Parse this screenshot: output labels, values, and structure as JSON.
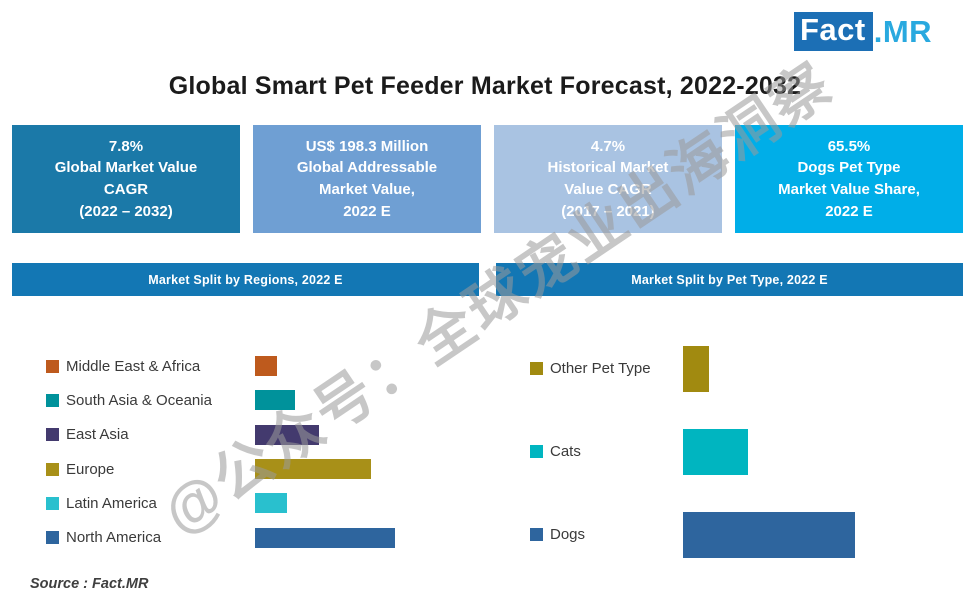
{
  "logo": {
    "fact": "Fact",
    "mr": ".MR",
    "fact_bg": "#1c6fb5",
    "mr_color": "#29a9df"
  },
  "title": "Global Smart Pet Feeder Market Forecast, 2022-2032",
  "stat_boxes": [
    {
      "color": "#1b79a8",
      "lines": [
        "7.8%",
        "Global Market Value",
        "CAGR",
        "(2022 – 2032)"
      ]
    },
    {
      "color": "#6f9fd3",
      "lines": [
        "US$ 198.3 Million",
        "Global Addressable",
        "Market Value,",
        "2022 E"
      ]
    },
    {
      "color": "#a9c3e2",
      "lines": [
        "4.7%",
        "Historical Market",
        "Value CAGR",
        "(2017 – 2021)"
      ]
    },
    {
      "color": "#00aee8",
      "lines": [
        "65.5%",
        "Dogs Pet Type",
        "Market Value Share,",
        "2022 E"
      ]
    }
  ],
  "section_headers": [
    {
      "label": "Market Split by Regions, 2022 E",
      "bg": "#1377b4"
    },
    {
      "label": "Market Split by Pet Type, 2022 E",
      "bg": "#1377b4"
    }
  ],
  "chart_data": [
    {
      "type": "bar",
      "orientation": "horizontal",
      "title": "Market Split by Regions, 2022 E",
      "categories": [
        "Middle East & Africa",
        "South Asia & Oceania",
        "East Asia",
        "Europe",
        "Latin America",
        "North America"
      ],
      "values": [
        5.5,
        10,
        16,
        29,
        8,
        35
      ],
      "value_labels_shown": false,
      "values_note": "percent share estimated from bar lengths",
      "colors": [
        "#be5a1d",
        "#00929b",
        "#433a6e",
        "#a89018",
        "#29c0ce",
        "#2e659e"
      ],
      "legend_position": "left",
      "grid": false,
      "axes_shown": false
    },
    {
      "type": "bar",
      "orientation": "horizontal",
      "title": "Market Split by Pet Type, 2022 E",
      "categories": [
        "Other Pet Type",
        "Cats",
        "Dogs"
      ],
      "values": [
        9.7,
        24.8,
        65.5
      ],
      "value_labels_shown": false,
      "values_note": "Dogs = 65.5% stated in stat box; others estimated from bar lengths",
      "colors": [
        "#a18a10",
        "#00b5c0",
        "#2e659e"
      ],
      "legend_position": "left",
      "grid": false,
      "axes_shown": false
    }
  ],
  "watermark": {
    "text": "@公众号：全球宠业出海洞察",
    "color": "#9b9b9b"
  },
  "source": "Source : Fact.MR"
}
